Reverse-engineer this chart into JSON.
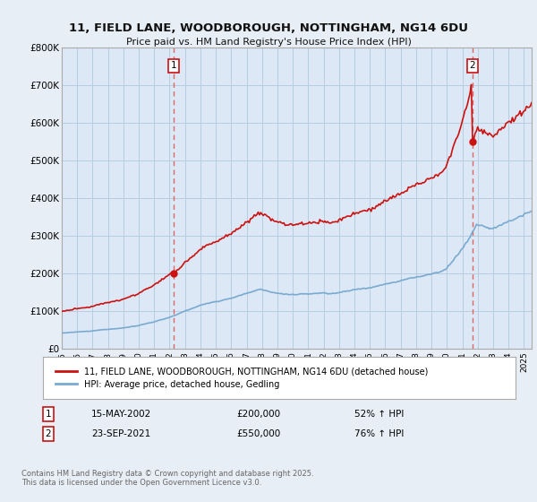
{
  "title": "11, FIELD LANE, WOODBOROUGH, NOTTINGHAM, NG14 6DU",
  "subtitle": "Price paid vs. HM Land Registry's House Price Index (HPI)",
  "bg_color": "#e8eef5",
  "plot_bg_color": "#dce8f5",
  "grid_color": "#b8cde0",
  "red_color": "#cc1111",
  "blue_color": "#7aaad0",
  "vline_color": "#dd6666",
  "legend_line1": "11, FIELD LANE, WOODBOROUGH, NOTTINGHAM, NG14 6DU (detached house)",
  "legend_line2": "HPI: Average price, detached house, Gedling",
  "annotation1_date": "15-MAY-2002",
  "annotation1_price": "£200,000",
  "annotation1_hpi": "52% ↑ HPI",
  "annotation2_date": "23-SEP-2021",
  "annotation2_price": "£550,000",
  "annotation2_hpi": "76% ↑ HPI",
  "footer": "Contains HM Land Registry data © Crown copyright and database right 2025.\nThis data is licensed under the Open Government Licence v3.0.",
  "ylim": [
    0,
    800000
  ],
  "yticks": [
    0,
    100000,
    200000,
    300000,
    400000,
    500000,
    600000,
    700000,
    800000
  ],
  "ytick_labels": [
    "£0",
    "£100K",
    "£200K",
    "£300K",
    "£400K",
    "£500K",
    "£600K",
    "£700K",
    "£800K"
  ],
  "xlim_start": 1995,
  "xlim_end": 2025.5
}
